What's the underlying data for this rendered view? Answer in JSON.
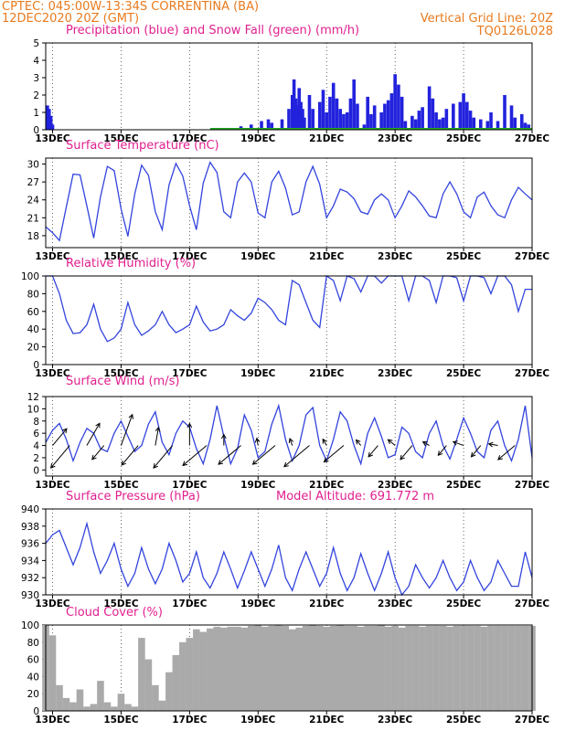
{
  "header": {
    "source_and_location": "CPTEC:   045:00W-13:34S   CORRENTINA (BA)",
    "run_time": "12DEC2020 20Z (GMT)",
    "grid_note": "Vertical Grid Line: 20Z",
    "model_code": "TQ0126L028"
  },
  "colors": {
    "header": "#e87a1e",
    "title": "#e0208f",
    "line": "#3344dd",
    "precip": "#2222dd",
    "snow": "#22aa22",
    "cloud": "#aaaaaa"
  },
  "x_axis": {
    "ticks": [
      "13DEC",
      "15DEC",
      "17DEC",
      "19DEC",
      "21DEC",
      "23DEC",
      "25DEC",
      "27DEC"
    ],
    "tick_day": [
      13,
      15,
      17,
      19,
      21,
      23,
      25,
      27
    ],
    "range_day": [
      12.8,
      27.0
    ]
  },
  "chart_data": [
    {
      "id": "precip",
      "type": "bar",
      "title": "Precipitation (blue) and Snow Fall (green) (mm/h)",
      "ylim": [
        0,
        5
      ],
      "yticks": [
        0,
        1,
        2,
        3,
        4,
        5
      ],
      "series": [
        {
          "name": "Precipitation",
          "color": "#2222dd",
          "x": [
            12.85,
            12.9,
            12.95,
            13.0,
            18.5,
            18.8,
            19.1,
            19.3,
            19.4,
            19.7,
            19.9,
            20.0,
            20.05,
            20.1,
            20.15,
            20.2,
            20.25,
            20.3,
            20.35,
            20.5,
            20.6,
            20.8,
            20.9,
            21.0,
            21.1,
            21.2,
            21.3,
            21.4,
            21.5,
            21.6,
            21.7,
            21.8,
            21.9,
            22.1,
            22.2,
            22.3,
            22.4,
            22.6,
            22.7,
            22.8,
            22.9,
            23.0,
            23.1,
            23.2,
            23.3,
            23.5,
            23.6,
            23.7,
            23.8,
            24.0,
            24.1,
            24.2,
            24.3,
            24.4,
            24.5,
            24.7,
            24.9,
            25.0,
            25.1,
            25.2,
            25.3,
            25.5,
            25.7,
            25.8,
            26.0,
            26.2,
            26.4,
            26.5,
            26.7,
            26.8,
            26.9
          ],
          "values": [
            1.4,
            1.2,
            0.8,
            0.3,
            0.2,
            0.3,
            0.5,
            0.6,
            0.4,
            0.6,
            1.2,
            2.0,
            2.9,
            1.8,
            1.4,
            2.4,
            1.6,
            1.2,
            0.7,
            2.0,
            1.2,
            1.6,
            2.3,
            1.0,
            1.9,
            2.7,
            1.8,
            1.2,
            0.9,
            1.0,
            1.8,
            2.9,
            1.5,
            0.3,
            1.9,
            0.9,
            1.4,
            1.0,
            1.5,
            1.7,
            2.1,
            3.2,
            2.6,
            1.9,
            0.5,
            0.8,
            0.6,
            1.1,
            1.3,
            2.5,
            1.8,
            1.0,
            0.6,
            0.7,
            1.2,
            1.5,
            1.6,
            2.1,
            1.6,
            1.1,
            0.7,
            0.6,
            0.5,
            1.0,
            0.5,
            2.0,
            1.4,
            0.7,
            0.9,
            0.4,
            0.3
          ]
        },
        {
          "name": "Snow Fall",
          "color": "#22aa22",
          "x": [],
          "values": []
        }
      ]
    },
    {
      "id": "temp",
      "type": "line",
      "title": "Surface Temperature (nC)",
      "ylim": [
        16,
        31
      ],
      "yticks": [
        18,
        21,
        24,
        27,
        30
      ],
      "x": [
        12.8,
        13.0,
        13.2,
        13.4,
        13.6,
        13.8,
        14.0,
        14.2,
        14.4,
        14.6,
        14.8,
        15.0,
        15.2,
        15.4,
        15.6,
        15.8,
        16.0,
        16.2,
        16.4,
        16.6,
        16.8,
        17.0,
        17.2,
        17.4,
        17.6,
        17.8,
        18.0,
        18.2,
        18.4,
        18.6,
        18.8,
        19.0,
        19.2,
        19.4,
        19.6,
        19.8,
        20.0,
        20.2,
        20.4,
        20.6,
        20.8,
        21.0,
        21.2,
        21.4,
        21.6,
        21.8,
        22.0,
        22.2,
        22.4,
        22.6,
        22.8,
        23.0,
        23.2,
        23.4,
        23.6,
        23.8,
        24.0,
        24.2,
        24.4,
        24.6,
        24.8,
        25.0,
        25.2,
        25.4,
        25.6,
        25.8,
        26.0,
        26.2,
        26.4,
        26.6,
        26.8,
        27.0
      ],
      "y": [
        19.5,
        18.5,
        17.2,
        22.8,
        28.3,
        28.2,
        23.0,
        17.6,
        24.5,
        29.6,
        28.9,
        22.5,
        17.9,
        25.0,
        29.8,
        28.1,
        22.0,
        19.0,
        26.5,
        30.1,
        28.0,
        23.0,
        19.0,
        26.8,
        30.3,
        28.6,
        22.0,
        21.0,
        27.0,
        28.5,
        27.0,
        21.8,
        21.0,
        27.0,
        28.8,
        26.0,
        21.5,
        22.0,
        27.0,
        29.6,
        26.6,
        21.0,
        23.0,
        25.8,
        25.3,
        24.2,
        22.0,
        21.6,
        24.0,
        25.0,
        24.0,
        21.0,
        23.0,
        25.5,
        24.5,
        23.0,
        21.3,
        21.0,
        25.0,
        27.0,
        25.0,
        22.0,
        21.0,
        24.5,
        25.3,
        23.0,
        21.5,
        21.0,
        24.0,
        26.1,
        25.0,
        24.0
      ]
    },
    {
      "id": "rh",
      "type": "line",
      "title": "Relative Humidity (%)",
      "ylim": [
        0,
        100
      ],
      "yticks": [
        0,
        20,
        40,
        60,
        80,
        100
      ],
      "x": [
        12.8,
        13.0,
        13.2,
        13.4,
        13.6,
        13.8,
        14.0,
        14.2,
        14.4,
        14.6,
        14.8,
        15.0,
        15.2,
        15.4,
        15.6,
        15.8,
        16.0,
        16.2,
        16.4,
        16.6,
        16.8,
        17.0,
        17.2,
        17.4,
        17.6,
        17.8,
        18.0,
        18.2,
        18.4,
        18.6,
        18.8,
        19.0,
        19.2,
        19.4,
        19.6,
        19.8,
        20.0,
        20.2,
        20.4,
        20.6,
        20.8,
        21.0,
        21.2,
        21.4,
        21.6,
        21.8,
        22.0,
        22.2,
        22.4,
        22.6,
        22.8,
        23.0,
        23.2,
        23.4,
        23.6,
        23.8,
        24.0,
        24.2,
        24.4,
        24.6,
        24.8,
        25.0,
        25.2,
        25.4,
        25.6,
        25.8,
        26.0,
        26.2,
        26.4,
        26.6,
        26.8,
        27.0
      ],
      "y": [
        100,
        100,
        80,
        50,
        35,
        36,
        45,
        68,
        40,
        26,
        30,
        40,
        70,
        45,
        33,
        38,
        45,
        60,
        45,
        36,
        40,
        45,
        66,
        48,
        38,
        40,
        45,
        62,
        55,
        50,
        58,
        75,
        70,
        62,
        50,
        45,
        95,
        90,
        70,
        50,
        42,
        100,
        95,
        72,
        100,
        97,
        82,
        100,
        100,
        92,
        100,
        100,
        100,
        72,
        100,
        100,
        95,
        70,
        100,
        100,
        98,
        72,
        100,
        100,
        98,
        80,
        100,
        100,
        90,
        60,
        85,
        85
      ]
    },
    {
      "id": "wind",
      "type": "line",
      "title": "Surface Wind (m/s)",
      "ylim": [
        -1,
        12
      ],
      "yticks": [
        0,
        2,
        4,
        6,
        8,
        10,
        12
      ],
      "x": [
        12.8,
        13.0,
        13.2,
        13.4,
        13.6,
        13.8,
        14.0,
        14.2,
        14.4,
        14.6,
        14.8,
        15.0,
        15.2,
        15.4,
        15.6,
        15.8,
        16.0,
        16.2,
        16.4,
        16.6,
        16.8,
        17.0,
        17.2,
        17.4,
        17.6,
        17.8,
        18.0,
        18.2,
        18.4,
        18.6,
        18.8,
        19.0,
        19.2,
        19.4,
        19.6,
        19.8,
        20.0,
        20.2,
        20.4,
        20.6,
        20.8,
        21.0,
        21.2,
        21.4,
        21.6,
        21.8,
        22.0,
        22.2,
        22.4,
        22.6,
        22.8,
        23.0,
        23.2,
        23.4,
        23.6,
        23.8,
        24.0,
        24.2,
        24.4,
        24.6,
        24.8,
        25.0,
        25.2,
        25.4,
        25.6,
        25.8,
        26.0,
        26.2,
        26.4,
        26.6,
        26.8,
        27.0
      ],
      "y": [
        4.5,
        6.5,
        7.6,
        5.0,
        1.5,
        4.5,
        6.8,
        6.0,
        3.5,
        3.0,
        6.0,
        8.0,
        5.5,
        3.0,
        4.0,
        7.5,
        9.5,
        4.5,
        2.5,
        6.0,
        8.0,
        7.0,
        3.5,
        1.0,
        5.0,
        10.5,
        5.5,
        1.0,
        3.5,
        9.0,
        6.5,
        2.0,
        3.0,
        7.5,
        10.5,
        5.0,
        1.5,
        4.0,
        9.0,
        10.2,
        4.0,
        1.5,
        5.0,
        9.5,
        8.0,
        4.0,
        1.0,
        6.0,
        8.5,
        5.5,
        2.0,
        2.5,
        7.0,
        6.0,
        3.0,
        2.0,
        6.0,
        8.0,
        4.0,
        1.8,
        5.0,
        8.5,
        6.0,
        3.0,
        2.0,
        6.5,
        8.0,
        4.0,
        1.5,
        5.0,
        10.5,
        2.0
      ],
      "barbs": {
        "x": [
          13.0,
          13.5,
          14.0,
          14.5,
          15.0,
          15.5,
          16.0,
          16.5,
          17.0,
          17.5,
          18.0,
          18.5,
          19.0,
          19.5,
          20.0,
          20.5,
          21.0,
          21.5,
          22.0,
          22.5,
          23.0,
          23.5,
          24.0,
          24.5,
          25.0,
          25.5,
          26.0,
          26.5
        ],
        "speed": [
          6.0,
          8.0,
          7.0,
          5.0,
          9.0,
          7.0,
          5.0,
          8.0,
          6.0,
          8.5,
          3.0,
          8.0,
          2.0,
          8.0,
          2.0,
          9.0,
          2.0,
          7.0,
          2.0,
          4.0,
          2.5,
          5.0,
          2.0,
          3.5,
          3.0,
          4.0,
          2.5,
          6.0
        ],
        "dir_deg": [
          50,
          230,
          60,
          230,
          70,
          230,
          80,
          230,
          90,
          220,
          90,
          220,
          100,
          220,
          110,
          220,
          120,
          220,
          130,
          230,
          140,
          230,
          150,
          230,
          160,
          230,
          170,
          220
        ]
      }
    },
    {
      "id": "pres",
      "type": "line",
      "title": "Surface Pressure (hPa)",
      "annotation": "Model Altitude: 691.772 m",
      "ylim": [
        930,
        940
      ],
      "yticks": [
        930,
        932,
        934,
        936,
        938,
        940
      ],
      "x": [
        12.8,
        13.0,
        13.2,
        13.4,
        13.6,
        13.8,
        14.0,
        14.2,
        14.4,
        14.6,
        14.8,
        15.0,
        15.2,
        15.4,
        15.6,
        15.8,
        16.0,
        16.2,
        16.4,
        16.6,
        16.8,
        17.0,
        17.2,
        17.4,
        17.6,
        17.8,
        18.0,
        18.2,
        18.4,
        18.6,
        18.8,
        19.0,
        19.2,
        19.4,
        19.6,
        19.8,
        20.0,
        20.2,
        20.4,
        20.6,
        20.8,
        21.0,
        21.2,
        21.4,
        21.6,
        21.8,
        22.0,
        22.2,
        22.4,
        22.6,
        22.8,
        23.0,
        23.2,
        23.4,
        23.6,
        23.8,
        24.0,
        24.2,
        24.4,
        24.6,
        24.8,
        25.0,
        25.2,
        25.4,
        25.6,
        25.8,
        26.0,
        26.2,
        26.4,
        26.6,
        26.8,
        27.0
      ],
      "y": [
        936.0,
        937.0,
        937.5,
        935.5,
        933.5,
        935.5,
        938.3,
        935.0,
        932.5,
        934.0,
        936.0,
        933.0,
        931.0,
        932.5,
        935.5,
        933.0,
        931.3,
        933.0,
        936.0,
        934.0,
        931.5,
        932.5,
        935.0,
        932.0,
        930.8,
        932.5,
        935.0,
        933.0,
        930.8,
        932.8,
        935.0,
        933.0,
        931.0,
        933.0,
        935.8,
        932.0,
        930.5,
        933.0,
        935.0,
        933.0,
        931.0,
        932.5,
        935.5,
        932.5,
        930.5,
        932.0,
        934.8,
        932.5,
        930.5,
        932.5,
        935.0,
        932.0,
        930.0,
        931.0,
        933.5,
        932.0,
        930.8,
        932.0,
        934.0,
        932.0,
        930.5,
        931.5,
        934.0,
        932.0,
        930.5,
        931.5,
        934.0,
        932.5,
        931.0,
        931.0,
        935.0,
        932.0
      ]
    },
    {
      "id": "cloud",
      "type": "area",
      "title": "Cloud Cover (%)",
      "ylim": [
        0,
        100
      ],
      "yticks": [
        0,
        20,
        40,
        60,
        80,
        100
      ],
      "color": "#aaaaaa",
      "x": [
        12.8,
        13.0,
        13.2,
        13.4,
        13.6,
        13.8,
        14.0,
        14.2,
        14.4,
        14.6,
        14.8,
        15.0,
        15.2,
        15.4,
        15.6,
        15.8,
        16.0,
        16.2,
        16.4,
        16.6,
        16.8,
        17.0,
        17.2,
        17.4,
        17.6,
        17.8,
        18.0,
        18.2,
        18.4,
        18.6,
        18.8,
        19.0,
        19.2,
        19.4,
        19.6,
        19.8,
        20.0,
        20.2,
        20.4,
        20.6,
        20.8,
        21.0,
        21.2,
        21.4,
        21.6,
        21.8,
        22.0,
        22.2,
        22.4,
        22.6,
        22.8,
        23.0,
        23.2,
        23.4,
        23.6,
        23.8,
        24.0,
        24.2,
        24.4,
        24.6,
        24.8,
        25.0,
        25.2,
        25.4,
        25.6,
        25.8,
        26.0,
        26.2,
        26.4,
        26.6,
        26.8,
        27.0
      ],
      "y": [
        100,
        88,
        30,
        15,
        10,
        25,
        5,
        8,
        35,
        10,
        5,
        20,
        8,
        5,
        85,
        60,
        30,
        12,
        45,
        65,
        80,
        85,
        95,
        92,
        96,
        98,
        97,
        98,
        98,
        97,
        99,
        100,
        98,
        99,
        100,
        99,
        95,
        97,
        99,
        100,
        99,
        98,
        99,
        100,
        99,
        99,
        98,
        99,
        99,
        100,
        98,
        99,
        97,
        99,
        99,
        98,
        99,
        99,
        99,
        98,
        99,
        99,
        99,
        99,
        98,
        99,
        99,
        99,
        99,
        99,
        99,
        99
      ]
    }
  ]
}
